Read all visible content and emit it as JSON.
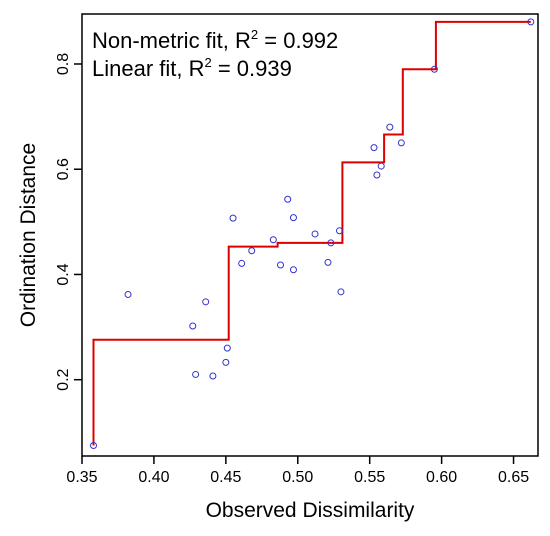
{
  "chart_data": {
    "type": "scatter",
    "title": "",
    "xlabel": "Observed Dissimilarity",
    "ylabel": "Ordination Distance",
    "xlim": [
      0.35,
      0.667
    ],
    "ylim": [
      0.055,
      0.895
    ],
    "x_ticks": [
      0.35,
      0.4,
      0.45,
      0.5,
      0.55,
      0.6,
      0.65
    ],
    "x_tick_labels": [
      "0.35",
      "0.40",
      "0.45",
      "0.50",
      "0.55",
      "0.60",
      "0.65"
    ],
    "y_ticks": [
      0.2,
      0.4,
      0.6,
      0.8
    ],
    "y_tick_labels": [
      "0.2",
      "0.4",
      "0.6",
      "0.8"
    ],
    "grid": false,
    "annotations": {
      "nonmetric_prefix": "Non-metric fit, R",
      "nonmetric_value": " = 0.992",
      "linear_prefix": "Linear fit, R",
      "linear_value": " = 0.939",
      "superscript": "2"
    },
    "points": {
      "color": "#3333cc",
      "x": [
        0.358,
        0.382,
        0.427,
        0.429,
        0.436,
        0.441,
        0.45,
        0.451,
        0.455,
        0.461,
        0.468,
        0.483,
        0.488,
        0.493,
        0.497,
        0.497,
        0.512,
        0.521,
        0.523,
        0.529,
        0.53,
        0.553,
        0.555,
        0.558,
        0.564,
        0.572,
        0.595,
        0.662
      ],
      "y": [
        0.075,
        0.362,
        0.302,
        0.21,
        0.348,
        0.207,
        0.233,
        0.26,
        0.507,
        0.421,
        0.445,
        0.466,
        0.418,
        0.543,
        0.508,
        0.409,
        0.477,
        0.423,
        0.46,
        0.483,
        0.367,
        0.641,
        0.589,
        0.606,
        0.68,
        0.65,
        0.79,
        0.88
      ]
    },
    "step_line": {
      "color": "#dd0000",
      "x": [
        0.358,
        0.358,
        0.452,
        0.452,
        0.486,
        0.486,
        0.531,
        0.531,
        0.56,
        0.56,
        0.573,
        0.573,
        0.596,
        0.596,
        0.662
      ],
      "y": [
        0.075,
        0.276,
        0.276,
        0.453,
        0.453,
        0.46,
        0.46,
        0.613,
        0.613,
        0.666,
        0.666,
        0.79,
        0.79,
        0.88,
        0.88
      ]
    }
  }
}
